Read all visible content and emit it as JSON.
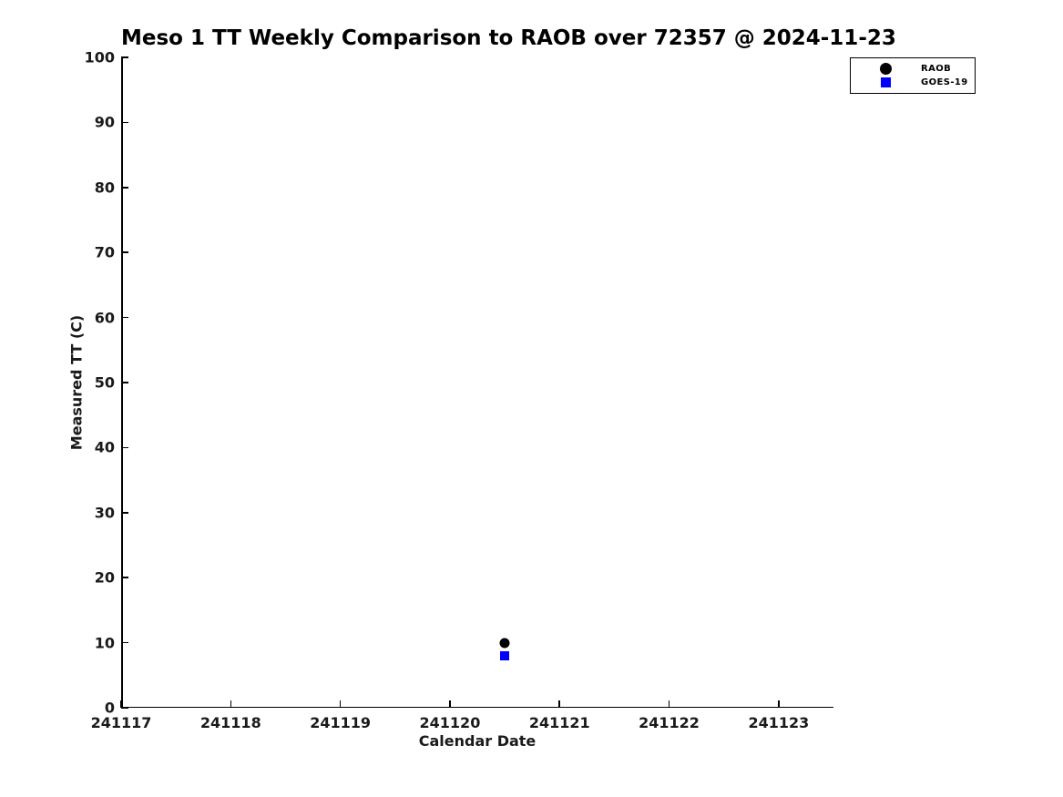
{
  "chart_data": {
    "type": "scatter",
    "title": "Meso 1 TT Weekly Comparison to RAOB over 72357 @ 2024-11-23",
    "xlabel": "Calendar Date",
    "ylabel": "Measured TT (C)",
    "xlim": [
      241117,
      241123.5
    ],
    "ylim": [
      0,
      100
    ],
    "xticks": [
      241117,
      241118,
      241119,
      241120,
      241121,
      241122,
      241123
    ],
    "yticks": [
      0,
      10,
      20,
      30,
      40,
      50,
      60,
      70,
      80,
      90,
      100
    ],
    "grid": false,
    "tick_direction": "in",
    "legend": {
      "position": "top-right",
      "entries": [
        {
          "label": "RAOB",
          "marker": "circle",
          "color": "#000000"
        },
        {
          "label": "GOES-19",
          "marker": "square",
          "color": "#0000ff"
        }
      ]
    },
    "series": [
      {
        "name": "RAOB",
        "marker": "circle",
        "color": "#000000",
        "points": [
          {
            "x": 241120.5,
            "y": 10
          }
        ]
      },
      {
        "name": "GOES-19",
        "marker": "square",
        "color": "#0000ff",
        "points": [
          {
            "x": 241120.5,
            "y": 8
          }
        ]
      }
    ]
  },
  "colors": {
    "background": "#ffffff",
    "axis": "#000000",
    "raob": "#000000",
    "goes19": "#0000ff"
  }
}
